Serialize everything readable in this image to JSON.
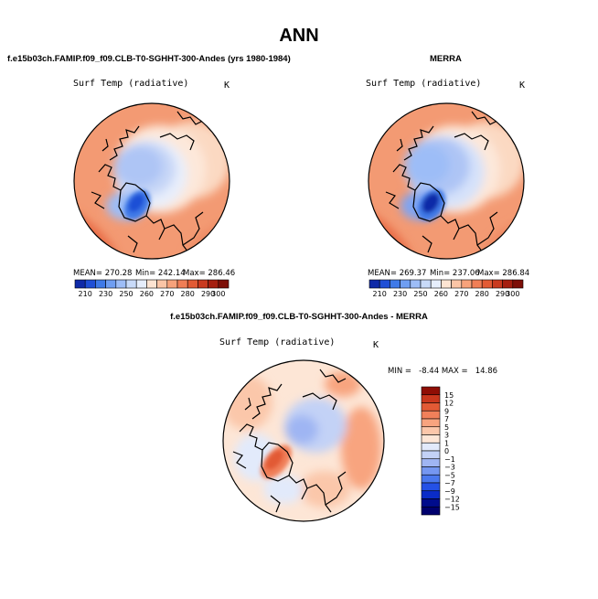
{
  "page": {
    "title": "ANN",
    "diff_title": "f.e15b03ch.FAMIP.f09_f09.CLB-T0-SGHHT-300-Andes - MERRA"
  },
  "colors": {
    "abs_scale": [
      "#0f2aa8",
      "#1f4fd6",
      "#3f7ae8",
      "#6f9ef2",
      "#9dbdf7",
      "#c8daf9",
      "#e6eefc",
      "#fde4d2",
      "#fbc5a6",
      "#f7a27b",
      "#f07e56",
      "#e25b35",
      "#c93a1f",
      "#a51f10",
      "#7d0f08"
    ],
    "diff_scale": [
      "#000c8c",
      "#0a2cc8",
      "#2451e6",
      "#4a78ee",
      "#7597f1",
      "#9fb5f3",
      "#c3d2f6",
      "#e2eafb",
      "#fde6d6",
      "#fbc7aa",
      "#f8a47f",
      "#f1805a",
      "#e25a35",
      "#c9371d",
      "#8f0e05"
    ]
  },
  "chart_data": [
    {
      "type": "heatmap",
      "projection": "polar-stereographic",
      "title": "f.e15b03ch.FAMIP.f09_f09.CLB-T0-SGHHT-300-Andes (yrs 1980-1984)",
      "variable": "Surf Temp (radiative)",
      "units": "K",
      "mean_label": "MEAN= 270.28",
      "min_label": "Min= 242.14",
      "max_label": "Max= 286.46",
      "mean": 270.28,
      "min": 242.14,
      "max": 286.46,
      "colorbar_ticks": [
        "210",
        "230",
        "250",
        "260",
        "270",
        "280",
        "290",
        "300"
      ],
      "levels": [
        210,
        220,
        230,
        240,
        250,
        255,
        260,
        265,
        270,
        275,
        280,
        285,
        290,
        295,
        300
      ]
    },
    {
      "type": "heatmap",
      "projection": "polar-stereographic",
      "title": "MERRA",
      "variable": "Surf Temp (radiative)",
      "units": "K",
      "mean_label": "MEAN= 269.37",
      "min_label": "Min= 237.06",
      "max_label": "Max= 286.84",
      "mean": 269.37,
      "min": 237.06,
      "max": 286.84,
      "colorbar_ticks": [
        "210",
        "230",
        "250",
        "260",
        "270",
        "280",
        "290",
        "300"
      ],
      "levels": [
        210,
        220,
        230,
        240,
        250,
        255,
        260,
        265,
        270,
        275,
        280,
        285,
        290,
        295,
        300
      ]
    },
    {
      "type": "heatmap",
      "projection": "polar-stereographic",
      "title": "f.e15b03ch.FAMIP.f09_f09.CLB-T0-SGHHT-300-Andes - MERRA",
      "variable": "Surf Temp (radiative)",
      "units": "K",
      "minmax_label": "MIN =   -8.44 MAX =   14.86",
      "min": -8.44,
      "max": 14.86,
      "colorbar_ticks": [
        "15",
        "12",
        "9",
        "7",
        "5",
        "3",
        "1",
        "0",
        "−1",
        "−3",
        "−5",
        "−7",
        "−9",
        "−12",
        "−15"
      ]
    }
  ]
}
